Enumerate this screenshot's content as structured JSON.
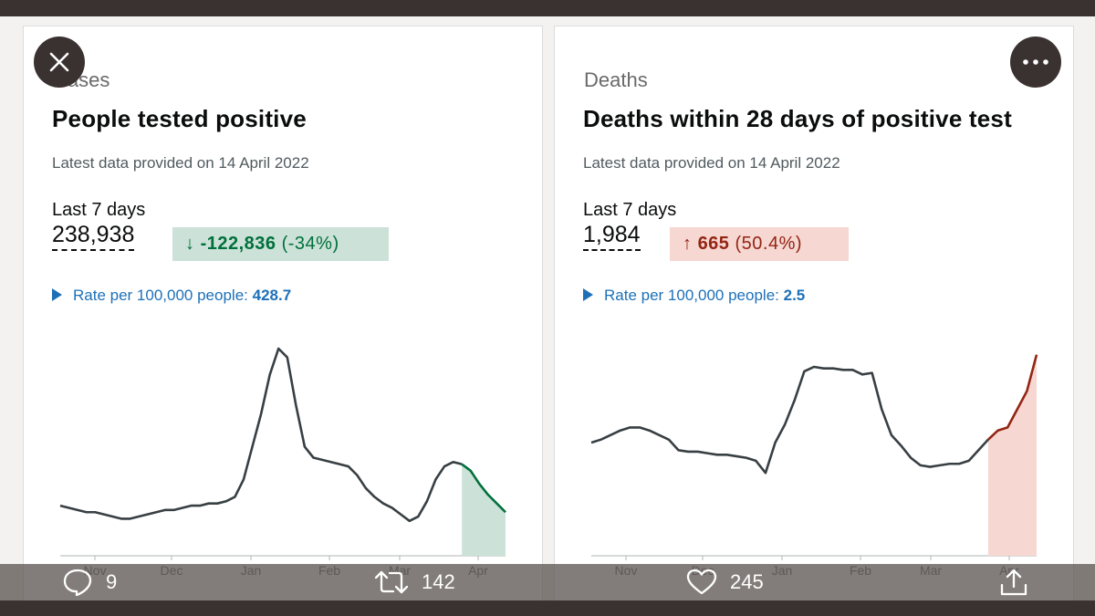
{
  "left_card": {
    "section": "Cases",
    "title": "People tested positive",
    "updated": "Latest data provided on 14 April 2022",
    "last7_label": "Last 7 days",
    "value": "238,938",
    "change_arrow": "↓",
    "change_value": "-122,836",
    "change_pct": "(-34%)",
    "rate_label": "Rate per 100,000 people:",
    "rate_value": "428.7"
  },
  "right_card": {
    "section": "Deaths",
    "title": "Deaths within 28 days of positive test",
    "updated": "Latest data provided on 14 April 2022",
    "last7_label": "Last 7 days",
    "value": "1,984",
    "change_arrow": "↑",
    "change_value": "665",
    "change_pct": "(50.4%)",
    "rate_label": "Rate per 100,000 people:",
    "rate_value": "2.5"
  },
  "colors": {
    "down_bg": "#cce2d8",
    "down_text": "#00703c",
    "up_bg": "#f6d7d2",
    "up_text": "#942514",
    "link": "#1d70b8",
    "line": "#383f43"
  },
  "chart_data": [
    {
      "type": "line",
      "title": "People tested positive",
      "x_ticks": [
        "Nov",
        "Dec",
        "Jan",
        "Feb",
        "Mar",
        "Apr"
      ],
      "y_scale": "relative (no y-axis shown)",
      "series": [
        {
          "values": [
            0.28,
            0.27,
            0.26,
            0.25,
            0.25,
            0.24,
            0.23,
            0.22,
            0.22,
            0.23,
            0.24,
            0.25,
            0.26,
            0.26,
            0.27,
            0.28,
            0.28,
            0.29,
            0.29,
            0.3,
            0.32,
            0.4,
            0.55,
            0.7,
            0.88,
            1.0,
            0.96,
            0.74,
            0.55,
            0.5,
            0.49,
            0.48,
            0.47,
            0.46,
            0.42,
            0.36,
            0.32,
            0.29,
            0.27,
            0.24,
            0.21,
            0.23,
            0.3,
            0.4,
            0.46,
            0.48,
            0.47,
            0.44,
            0.38,
            0.33,
            0.29,
            0.25
          ],
          "recent_highlight": "last 7 days decreasing"
        }
      ]
    },
    {
      "type": "line",
      "title": "Deaths within 28 days of positive test",
      "x_ticks": [
        "Nov",
        "Dec",
        "Jan",
        "Feb",
        "Mar",
        "Apr"
      ],
      "y_scale": "relative (no y-axis shown)",
      "series": [
        {
          "values": [
            0.5,
            0.52,
            0.55,
            0.58,
            0.6,
            0.6,
            0.58,
            0.55,
            0.52,
            0.45,
            0.44,
            0.44,
            0.43,
            0.42,
            0.42,
            0.41,
            0.4,
            0.38,
            0.3,
            0.5,
            0.62,
            0.78,
            0.97,
            1.0,
            0.99,
            0.99,
            0.98,
            0.98,
            0.95,
            0.96,
            0.72,
            0.55,
            0.48,
            0.4,
            0.35,
            0.34,
            0.35,
            0.36,
            0.36,
            0.38,
            0.45,
            0.52,
            0.58,
            0.6,
            0.72,
            0.84,
            1.08
          ],
          "recent_highlight": "last 7 days increasing"
        }
      ]
    }
  ],
  "bottom": {
    "reply_count": "9",
    "retweet_count": "142",
    "like_count": "245"
  }
}
